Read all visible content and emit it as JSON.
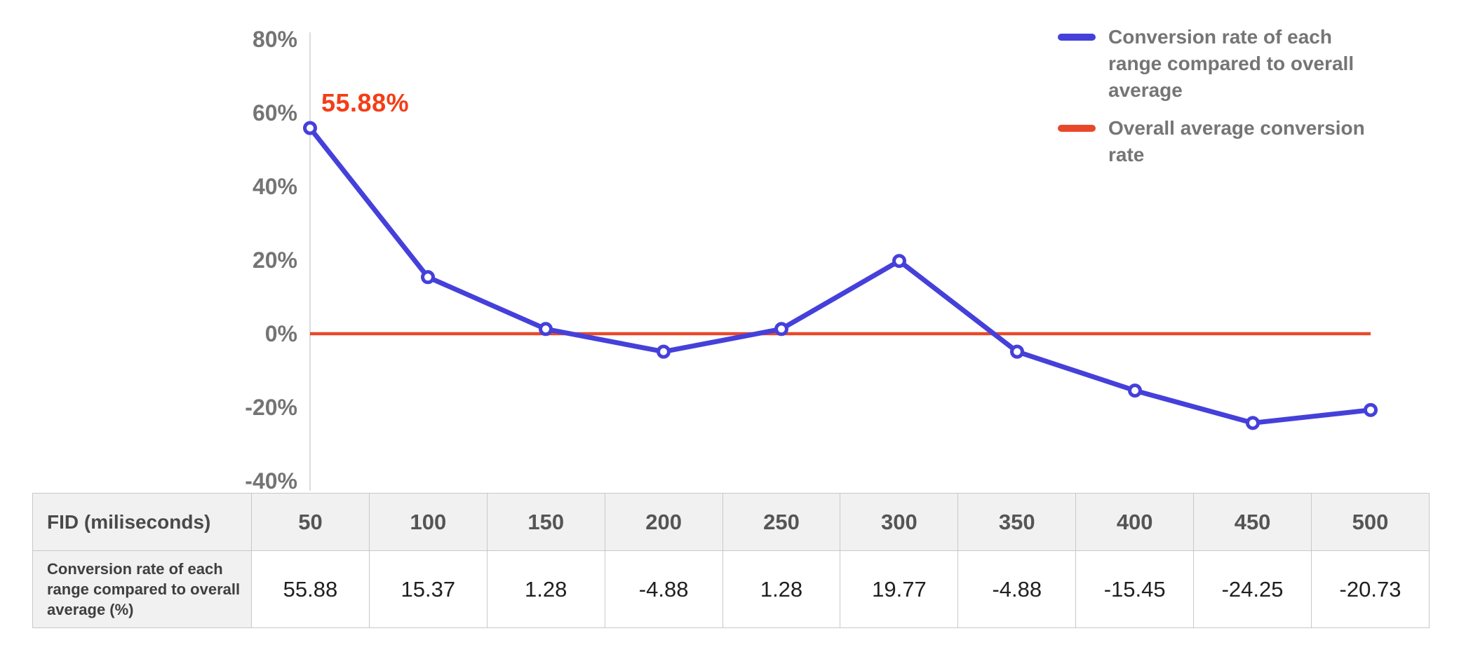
{
  "chart_data": {
    "type": "line",
    "x": [
      "50",
      "100",
      "150",
      "200",
      "250",
      "300",
      "350",
      "400",
      "450",
      "500"
    ],
    "xlabel": "FID (miliseconds)",
    "series": [
      {
        "name": "Conversion rate of each range compared to overall average",
        "values": [
          55.88,
          15.37,
          1.28,
          -4.88,
          1.28,
          19.77,
          -4.88,
          -15.45,
          -24.25,
          -20.73
        ],
        "color": "#4540da"
      },
      {
        "name": "Overall average conversion rate",
        "values": [
          0,
          0,
          0,
          0,
          0,
          0,
          0,
          0,
          0,
          0
        ],
        "color": "#e8482a"
      }
    ],
    "ylim": [
      -40,
      80
    ],
    "ytick_step": 20,
    "ytick_labels": [
      "80%",
      "60%",
      "40%",
      "20%",
      "0%",
      "-20%",
      "-40%"
    ],
    "grid": false,
    "legend_position": "top-right",
    "annotation": {
      "text": "55.88%",
      "color": "#f43d16"
    }
  },
  "legend": {
    "items": [
      {
        "label": "Conversion rate of each range compared to overall average",
        "color": "#4540da"
      },
      {
        "label": "Overall average conversion rate",
        "color": "#e8482a"
      }
    ]
  },
  "table": {
    "row1_label": "FID (miliseconds)",
    "row2_label": "Conversion rate of each range compared to overall average (%)",
    "columns": [
      "50",
      "100",
      "150",
      "200",
      "250",
      "300",
      "350",
      "400",
      "450",
      "500"
    ],
    "values": [
      "55.88",
      "15.37",
      "1.28",
      "-4.88",
      "1.28",
      "19.77",
      "-4.88",
      "-15.45",
      "-24.25",
      "-20.73"
    ]
  }
}
